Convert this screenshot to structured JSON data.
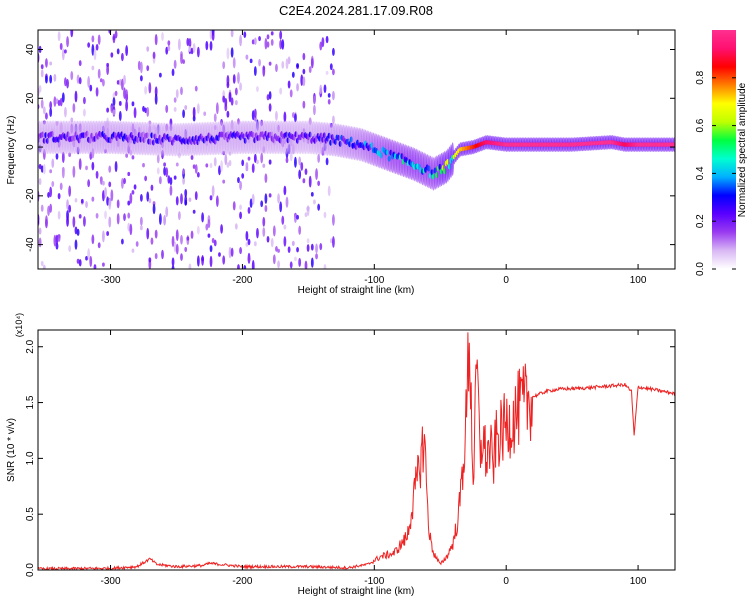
{
  "title": "C2E4.2024.281.17.09.R08",
  "chart_data": [
    {
      "type": "heatmap",
      "xlabel": "Height of straight line (km)",
      "ylabel": "Frequency (Hz)",
      "xlim": [
        -355,
        128
      ],
      "ylim": [
        -50,
        48
      ],
      "x_ticks": [
        -300,
        -200,
        -100,
        0,
        100
      ],
      "y_ticks": [
        -40,
        -20,
        0,
        20,
        40
      ],
      "colorbar": {
        "label": "Normalized spectral amplitude",
        "range": [
          0,
          1
        ],
        "ticks": [
          0.0,
          0.2,
          0.4,
          0.6,
          0.8
        ],
        "colors": [
          "#ffffff",
          "#d9b8f5",
          "#9a3cf0",
          "#5a00ff",
          "#0000ff",
          "#00b0ff",
          "#00ffd0",
          "#00ff40",
          "#c0ff00",
          "#ffff00",
          "#ff8000",
          "#ff0000",
          "#ff1070",
          "#ff3090"
        ]
      },
      "ridge": {
        "x": [
          -355,
          -300,
          -250,
          -200,
          -150,
          -130,
          -110,
          -90,
          -70,
          -55,
          -45,
          -35,
          -25,
          -15,
          0,
          50,
          80,
          90,
          100,
          128
        ],
        "freq": [
          4,
          4,
          3,
          4,
          4,
          3,
          1,
          -3,
          -7,
          -11,
          -8,
          -1,
          0,
          2,
          1,
          1,
          2,
          1,
          1,
          1
        ],
        "amplitude": [
          0.22,
          0.24,
          0.22,
          0.23,
          0.22,
          0.26,
          0.3,
          0.38,
          0.42,
          0.4,
          0.55,
          0.72,
          0.82,
          0.92,
          1,
          1,
          1,
          0.9,
          1,
          1
        ]
      },
      "noise_band": {
        "x_from": -355,
        "x_to": -130,
        "freq_span": [
          -50,
          48
        ]
      }
    },
    {
      "type": "line",
      "xlabel": "Height of straight line (km)",
      "ylabel": "SNR (10 * v/v)",
      "y_multiplier": "(x10⁴)",
      "xlim": [
        -355,
        128
      ],
      "ylim": [
        0,
        2.15
      ],
      "x_ticks": [
        -300,
        -200,
        -100,
        0,
        100
      ],
      "y_ticks": [
        0.0,
        0.5,
        1.0,
        1.5,
        2.0
      ],
      "line_color": "#ee2222",
      "series": [
        {
          "x": [
            -355,
            -300,
            -280,
            -270,
            -265,
            -250,
            -230,
            -225,
            -200,
            -150,
            -120,
            -105,
            -95,
            -85,
            -75,
            -70,
            -66,
            -62,
            -60,
            -58,
            -55,
            -50,
            -45,
            -40,
            -36,
            -33,
            -30,
            -28,
            -25,
            -22,
            -20,
            -18,
            -15,
            -12,
            -10,
            -8,
            -5,
            0,
            5,
            10,
            20,
            30,
            40,
            60,
            80,
            90,
            95,
            97,
            100,
            110,
            128
          ],
          "y": [
            0.01,
            0.015,
            0.03,
            0.1,
            0.05,
            0.03,
            0.04,
            0.06,
            0.03,
            0.03,
            0.02,
            0.05,
            0.12,
            0.15,
            0.3,
            0.65,
            0.9,
            1.2,
            0.65,
            0.3,
            0.15,
            0.05,
            0.12,
            0.25,
            0.5,
            0.9,
            1.4,
            2.15,
            0.8,
            1.85,
            1.0,
            1.2,
            1.0,
            1.1,
            0.9,
            1.15,
            1.2,
            1.3,
            1.35,
            1.45,
            1.55,
            1.6,
            1.62,
            1.63,
            1.65,
            1.66,
            1.6,
            1.2,
            1.64,
            1.62,
            1.58
          ]
        }
      ]
    }
  ]
}
